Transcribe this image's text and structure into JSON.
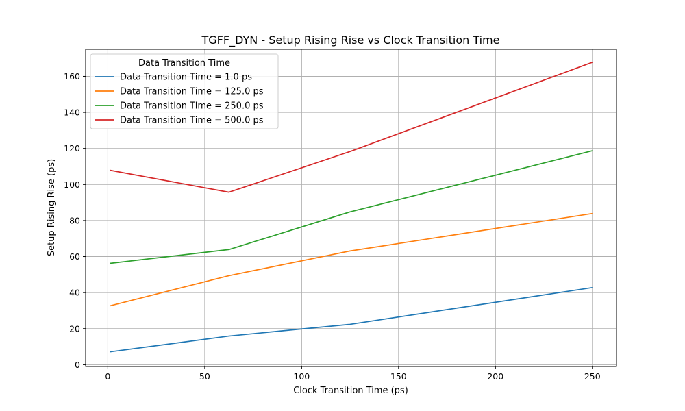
{
  "chart_data": {
    "type": "line",
    "title": "TGFF_DYN - Setup Rising Rise vs Clock Transition Time",
    "xlabel": "Clock Transition Time (ps)",
    "ylabel": "Setup Rising Rise (ps)",
    "xlim": [
      -11.45,
      262.45
    ],
    "ylim": [
      -1.0,
      175.0
    ],
    "xticks": [
      0,
      50,
      100,
      150,
      200,
      250
    ],
    "yticks": [
      0,
      20,
      40,
      60,
      80,
      100,
      120,
      140,
      160
    ],
    "grid": true,
    "legend": {
      "title": "Data Transition Time",
      "placement": "top-left"
    },
    "x": [
      1.0,
      62.5,
      125.0,
      250.0
    ],
    "series": [
      {
        "name": "Data Transition Time = 1.0 ps",
        "color": "#1f77b4",
        "values": [
          7.1,
          15.9,
          22.4,
          42.8
        ]
      },
      {
        "name": "Data Transition Time = 125.0 ps",
        "color": "#ff7f0e",
        "values": [
          32.6,
          49.4,
          63.1,
          83.9
        ]
      },
      {
        "name": "Data Transition Time = 250.0 ps",
        "color": "#2ca02c",
        "values": [
          56.2,
          63.9,
          84.8,
          118.7
        ]
      },
      {
        "name": "Data Transition Time = 500.0 ps",
        "color": "#d62728",
        "values": [
          107.9,
          95.7,
          118.3,
          167.8
        ]
      }
    ]
  }
}
